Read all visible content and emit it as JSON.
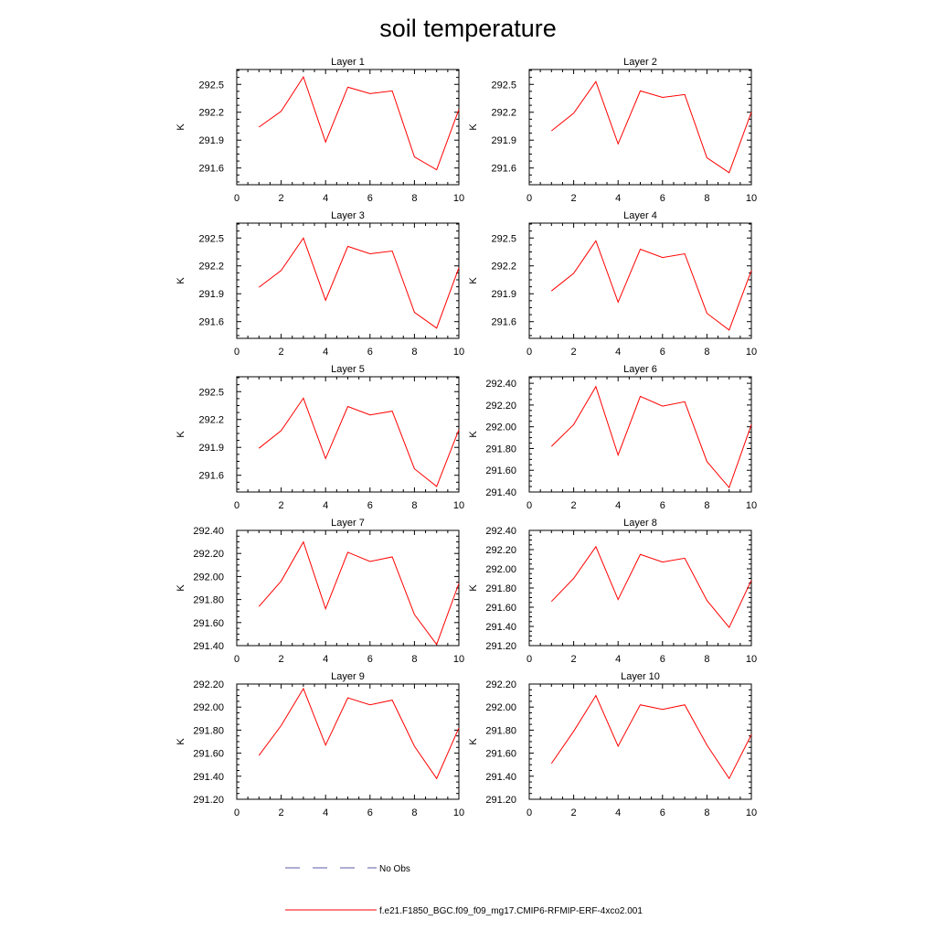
{
  "title": "soil temperature",
  "ylabel": "K",
  "series_color": "#ff0000",
  "obs_color": "#5a5aa8",
  "legend": {
    "obs_label": "No Obs",
    "model_label": "f.e21.F1850_BGC.f09_f09_mg17.CMIP6-RFMIP-ERF-4xco2.001"
  },
  "chart_data": [
    {
      "type": "line",
      "title": "Layer 1",
      "x": [
        1,
        2,
        3,
        4,
        5,
        6,
        7,
        8,
        9,
        10
      ],
      "values": [
        292.04,
        292.21,
        292.58,
        291.88,
        292.47,
        292.4,
        292.43,
        291.72,
        291.58,
        292.23
      ],
      "xlim": [
        0,
        10
      ],
      "ylim": [
        291.42,
        292.66
      ],
      "xticks": [
        0,
        2,
        4,
        6,
        8,
        10
      ],
      "yticks": [
        291.6,
        291.9,
        292.2,
        292.5
      ],
      "ytick_labels": [
        "291.6",
        "291.9",
        "292.2",
        "292.5"
      ]
    },
    {
      "type": "line",
      "title": "Layer 2",
      "x": [
        1,
        2,
        3,
        4,
        5,
        6,
        7,
        8,
        9,
        10
      ],
      "values": [
        292.0,
        292.19,
        292.53,
        291.86,
        292.43,
        292.36,
        292.39,
        291.71,
        291.55,
        292.2
      ],
      "xlim": [
        0,
        10
      ],
      "ylim": [
        291.42,
        292.66
      ],
      "xticks": [
        0,
        2,
        4,
        6,
        8,
        10
      ],
      "yticks": [
        291.6,
        291.9,
        292.2,
        292.5
      ],
      "ytick_labels": [
        "291.6",
        "291.9",
        "292.2",
        "292.5"
      ]
    },
    {
      "type": "line",
      "title": "Layer 3",
      "x": [
        1,
        2,
        3,
        4,
        5,
        6,
        7,
        8,
        9,
        10
      ],
      "values": [
        291.97,
        292.15,
        292.5,
        291.83,
        292.41,
        292.33,
        292.36,
        291.7,
        291.53,
        292.18
      ],
      "xlim": [
        0,
        10
      ],
      "ylim": [
        291.42,
        292.66
      ],
      "xticks": [
        0,
        2,
        4,
        6,
        8,
        10
      ],
      "yticks": [
        291.6,
        291.9,
        292.2,
        292.5
      ],
      "ytick_labels": [
        "291.6",
        "291.9",
        "292.2",
        "292.5"
      ]
    },
    {
      "type": "line",
      "title": "Layer 4",
      "x": [
        1,
        2,
        3,
        4,
        5,
        6,
        7,
        8,
        9,
        10
      ],
      "values": [
        291.93,
        292.12,
        292.47,
        291.81,
        292.38,
        292.29,
        292.33,
        291.69,
        291.51,
        292.15
      ],
      "xlim": [
        0,
        10
      ],
      "ylim": [
        291.42,
        292.66
      ],
      "xticks": [
        0,
        2,
        4,
        6,
        8,
        10
      ],
      "yticks": [
        291.6,
        291.9,
        292.2,
        292.5
      ],
      "ytick_labels": [
        "291.6",
        "291.9",
        "292.2",
        "292.5"
      ]
    },
    {
      "type": "line",
      "title": "Layer 5",
      "x": [
        1,
        2,
        3,
        4,
        5,
        6,
        7,
        8,
        9,
        10
      ],
      "values": [
        291.89,
        292.08,
        292.43,
        291.78,
        292.34,
        292.25,
        292.29,
        291.67,
        291.48,
        292.09
      ],
      "xlim": [
        0,
        10
      ],
      "ylim": [
        291.42,
        292.66
      ],
      "xticks": [
        0,
        2,
        4,
        6,
        8,
        10
      ],
      "yticks": [
        291.6,
        291.9,
        292.2,
        292.5
      ],
      "ytick_labels": [
        "291.6",
        "291.9",
        "292.2",
        "292.5"
      ]
    },
    {
      "type": "line",
      "title": "Layer 6",
      "x": [
        1,
        2,
        3,
        4,
        5,
        6,
        7,
        8,
        9,
        10
      ],
      "values": [
        291.82,
        292.02,
        292.37,
        291.74,
        292.28,
        292.19,
        292.23,
        291.68,
        291.44,
        292.02
      ],
      "xlim": [
        0,
        10
      ],
      "ylim": [
        291.4,
        292.46
      ],
      "xticks": [
        0,
        2,
        4,
        6,
        8,
        10
      ],
      "yticks": [
        291.4,
        291.6,
        291.8,
        292.0,
        292.2,
        292.4
      ],
      "ytick_labels": [
        "291.40",
        "291.60",
        "291.80",
        "292.00",
        "292.20",
        "292.40"
      ]
    },
    {
      "type": "line",
      "title": "Layer 7",
      "x": [
        1,
        2,
        3,
        4,
        5,
        6,
        7,
        8,
        9,
        10
      ],
      "values": [
        291.74,
        291.96,
        292.3,
        291.72,
        292.21,
        292.13,
        292.17,
        291.67,
        291.41,
        291.94
      ],
      "xlim": [
        0,
        10
      ],
      "ylim": [
        291.4,
        292.4
      ],
      "xticks": [
        0,
        2,
        4,
        6,
        8,
        10
      ],
      "yticks": [
        291.4,
        291.6,
        291.8,
        292.0,
        292.2,
        292.4
      ],
      "ytick_labels": [
        "291.40",
        "291.60",
        "291.80",
        "292.00",
        "292.20",
        "292.40"
      ]
    },
    {
      "type": "line",
      "title": "Layer 8",
      "x": [
        1,
        2,
        3,
        4,
        5,
        6,
        7,
        8,
        9,
        10
      ],
      "values": [
        291.66,
        291.9,
        292.23,
        291.68,
        292.15,
        292.07,
        292.11,
        291.67,
        291.39,
        291.88
      ],
      "xlim": [
        0,
        10
      ],
      "ylim": [
        291.2,
        292.4
      ],
      "xticks": [
        0,
        2,
        4,
        6,
        8,
        10
      ],
      "yticks": [
        291.2,
        291.4,
        291.6,
        291.8,
        292.0,
        292.2,
        292.4
      ],
      "ytick_labels": [
        "291.20",
        "291.40",
        "291.60",
        "291.80",
        "292.00",
        "292.20",
        "292.40"
      ]
    },
    {
      "type": "line",
      "title": "Layer 9",
      "x": [
        1,
        2,
        3,
        4,
        5,
        6,
        7,
        8,
        9,
        10
      ],
      "values": [
        291.58,
        291.84,
        292.16,
        291.67,
        292.08,
        292.02,
        292.06,
        291.66,
        291.38,
        291.82
      ],
      "xlim": [
        0,
        10
      ],
      "ylim": [
        291.2,
        292.2
      ],
      "xticks": [
        0,
        2,
        4,
        6,
        8,
        10
      ],
      "yticks": [
        291.2,
        291.4,
        291.6,
        291.8,
        292.0,
        292.2
      ],
      "ytick_labels": [
        "291.20",
        "291.40",
        "291.60",
        "291.80",
        "292.00",
        "292.20"
      ]
    },
    {
      "type": "line",
      "title": "Layer 10",
      "x": [
        1,
        2,
        3,
        4,
        5,
        6,
        7,
        8,
        9,
        10
      ],
      "values": [
        291.51,
        291.79,
        292.1,
        291.66,
        292.02,
        291.98,
        292.02,
        291.67,
        291.38,
        291.76
      ],
      "xlim": [
        0,
        10
      ],
      "ylim": [
        291.2,
        292.2
      ],
      "xticks": [
        0,
        2,
        4,
        6,
        8,
        10
      ],
      "yticks": [
        291.2,
        291.4,
        291.6,
        291.8,
        292.0,
        292.2
      ],
      "ytick_labels": [
        "291.20",
        "291.40",
        "291.60",
        "291.80",
        "292.00",
        "292.20"
      ]
    }
  ]
}
